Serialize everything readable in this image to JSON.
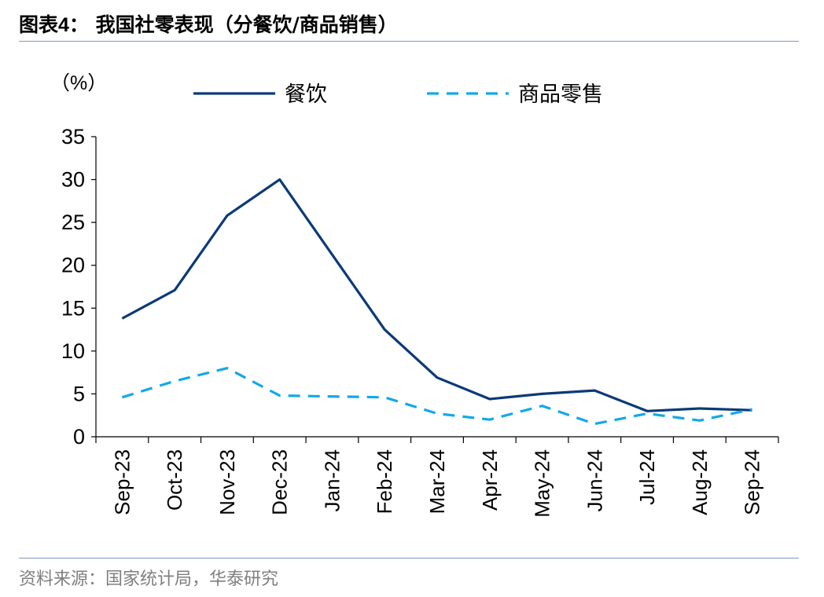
{
  "header": {
    "figure_label": "图表4：",
    "title": "我国社零表现（分餐饮/商品销售）"
  },
  "footer": {
    "source": "资料来源：国家统计局，华泰研究"
  },
  "chart_data": {
    "type": "line",
    "unit_label": "（%）",
    "title": "",
    "xlabel": "",
    "ylabel": "",
    "ylim": [
      0,
      35
    ],
    "yticks": [
      0,
      5,
      10,
      15,
      20,
      25,
      30,
      35
    ],
    "grid": false,
    "legend_position": "top",
    "categories": [
      "Sep-23",
      "Oct-23",
      "Nov-23",
      "Dec-23",
      "Jan-24",
      "Feb-24",
      "Mar-24",
      "Apr-24",
      "May-24",
      "Jun-24",
      "Jul-24",
      "Aug-24",
      "Sep-24"
    ],
    "series": [
      {
        "name": "餐饮",
        "color": "#0b3a78",
        "style": "solid",
        "values": [
          13.8,
          17.1,
          25.8,
          30.0,
          null,
          12.5,
          6.9,
          4.4,
          5.0,
          5.4,
          3.0,
          3.3,
          3.1
        ]
      },
      {
        "name": "商品零售",
        "color": "#14a8e8",
        "style": "dashed",
        "values": [
          4.6,
          6.5,
          8.0,
          4.8,
          null,
          4.6,
          2.7,
          2.0,
          3.6,
          1.5,
          2.7,
          1.9,
          3.2
        ]
      }
    ]
  }
}
